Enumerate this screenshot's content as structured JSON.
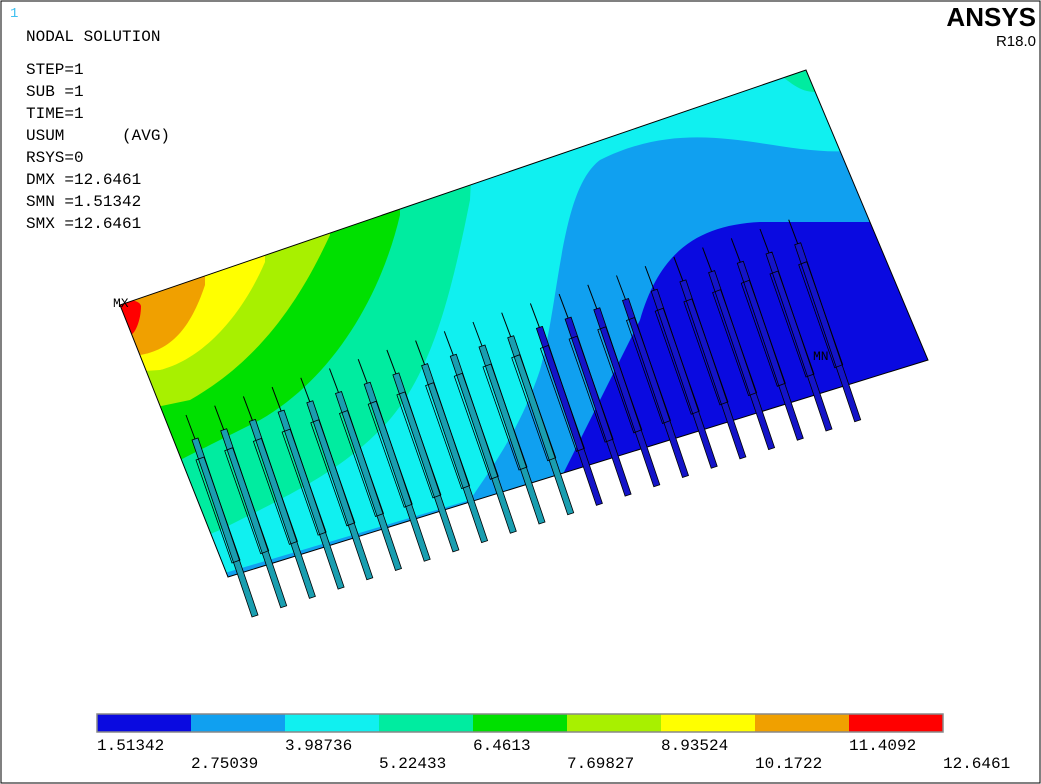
{
  "window_number": "1",
  "logo": "ANSYS",
  "version": "R18.0",
  "header": {
    "title": "NODAL SOLUTION",
    "lines": [
      "STEP=1",
      "SUB =1",
      "TIME=1",
      "USUM      (AVG)",
      "RSYS=0",
      "DMX =12.6461",
      "SMN =1.51342",
      "SMX =12.6461"
    ]
  },
  "markers": {
    "max": "MX",
    "min": "MN"
  },
  "legend": {
    "colors": [
      "#0a0ae0",
      "#10a0f0",
      "#10f0f0",
      "#00eca0",
      "#00e000",
      "#a8f000",
      "#ffff00",
      "#f0a000",
      "#ff0000"
    ],
    "labels": [
      "1.51342",
      "2.75039",
      "3.98736",
      "5.22433",
      "6.4613",
      "7.69827",
      "8.93524",
      "10.1722",
      "11.4092",
      "12.6461"
    ]
  }
}
